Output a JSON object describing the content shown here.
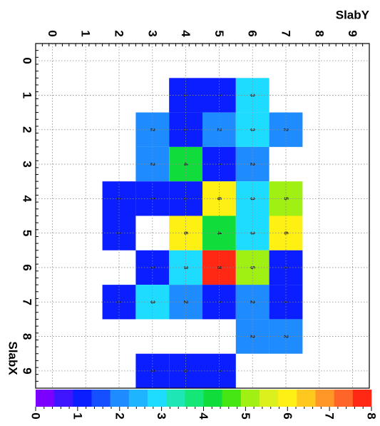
{
  "chart_data": {
    "type": "heatmap",
    "title": "",
    "xlabel": "SlabX",
    "ylabel": "SlabY",
    "xlim": [
      -0.5,
      9.5
    ],
    "ylim": [
      -0.5,
      9.5
    ],
    "x_ticks": [
      "0",
      "1",
      "2",
      "3",
      "4",
      "5",
      "6",
      "7",
      "8",
      "9"
    ],
    "y_ticks": [
      "0",
      "1",
      "2",
      "3",
      "4",
      "5",
      "6",
      "7",
      "8",
      "9"
    ],
    "z_range": [
      0,
      8
    ],
    "z_ticks": [
      "0",
      "1",
      "2",
      "3",
      "4",
      "5",
      "6",
      "7",
      "8"
    ],
    "grid": true,
    "colorbar": "bottom",
    "cells": [
      {
        "x": 1,
        "y": 4,
        "z": 1,
        "label": "1"
      },
      {
        "x": 1,
        "y": 5,
        "z": 1,
        "label": "1"
      },
      {
        "x": 1,
        "y": 6,
        "z": 3,
        "label": "3"
      },
      {
        "x": 2,
        "y": 3,
        "z": 2,
        "label": "2"
      },
      {
        "x": 2,
        "y": 4,
        "z": 1,
        "label": "1"
      },
      {
        "x": 2,
        "y": 5,
        "z": 2,
        "label": "2"
      },
      {
        "x": 2,
        "y": 6,
        "z": 3,
        "label": "3"
      },
      {
        "x": 2,
        "y": 7,
        "z": 2,
        "label": "2"
      },
      {
        "x": 3,
        "y": 3,
        "z": 2,
        "label": "2"
      },
      {
        "x": 3,
        "y": 4,
        "z": 4,
        "label": "4"
      },
      {
        "x": 3,
        "y": 5,
        "z": 1,
        "label": "1"
      },
      {
        "x": 3,
        "y": 6,
        "z": 2,
        "label": "2"
      },
      {
        "x": 4,
        "y": 2,
        "z": 1,
        "label": "1"
      },
      {
        "x": 4,
        "y": 3,
        "z": 1,
        "label": "1"
      },
      {
        "x": 4,
        "y": 4,
        "z": 1,
        "label": "1"
      },
      {
        "x": 4,
        "y": 5,
        "z": 6,
        "label": "6"
      },
      {
        "x": 4,
        "y": 6,
        "z": 3,
        "label": "3"
      },
      {
        "x": 4,
        "y": 7,
        "z": 5,
        "label": "5"
      },
      {
        "x": 5,
        "y": 2,
        "z": 1,
        "label": "1"
      },
      {
        "x": 5,
        "y": 4,
        "z": 6,
        "label": "6"
      },
      {
        "x": 5,
        "y": 5,
        "z": 4,
        "label": "4"
      },
      {
        "x": 5,
        "y": 6,
        "z": 3,
        "label": "3"
      },
      {
        "x": 5,
        "y": 7,
        "z": 6,
        "label": "6"
      },
      {
        "x": 6,
        "y": 3,
        "z": 1,
        "label": "1"
      },
      {
        "x": 6,
        "y": 4,
        "z": 3,
        "label": "3"
      },
      {
        "x": 6,
        "y": 5,
        "z": 8,
        "label": "8"
      },
      {
        "x": 6,
        "y": 6,
        "z": 5,
        "label": "5"
      },
      {
        "x": 6,
        "y": 7,
        "z": 1,
        "label": "1"
      },
      {
        "x": 7,
        "y": 2,
        "z": 1,
        "label": "1"
      },
      {
        "x": 7,
        "y": 3,
        "z": 3,
        "label": "3"
      },
      {
        "x": 7,
        "y": 4,
        "z": 2,
        "label": "2"
      },
      {
        "x": 7,
        "y": 5,
        "z": 1,
        "label": "1"
      },
      {
        "x": 7,
        "y": 6,
        "z": 2,
        "label": "2"
      },
      {
        "x": 7,
        "y": 7,
        "z": 1,
        "label": "1"
      },
      {
        "x": 8,
        "y": 6,
        "z": 2,
        "label": "2"
      },
      {
        "x": 8,
        "y": 7,
        "z": 2,
        "label": "2"
      },
      {
        "x": 9,
        "y": 3,
        "z": 1,
        "label": "1"
      },
      {
        "x": 9,
        "y": 4,
        "z": 1,
        "label": "1"
      },
      {
        "x": 9,
        "y": 5,
        "z": 1,
        "label": "1"
      }
    ]
  },
  "palette": [
    "#7b00ff",
    "#3f14ff",
    "#0a1eff",
    "#1450ff",
    "#1e8cff",
    "#1eb4ff",
    "#1edcff",
    "#1ee6b4",
    "#14e678",
    "#10dc3c",
    "#46e614",
    "#a0f014",
    "#dcf01e",
    "#fff014",
    "#ffc81e",
    "#ff9628",
    "#ff6428",
    "#ff2814"
  ]
}
